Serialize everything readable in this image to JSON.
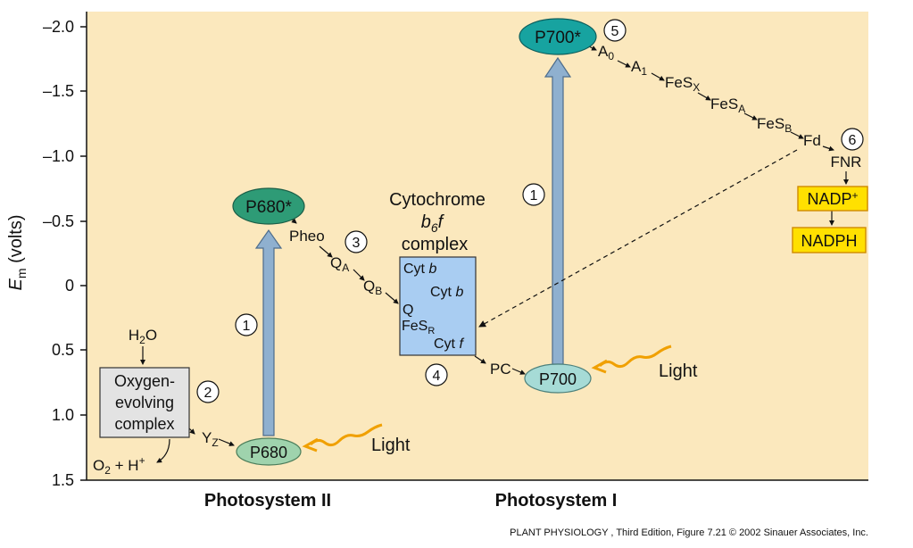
{
  "colors": {
    "plot_bg": "#fbe8bd",
    "p680_star": "#2e9b76",
    "p700_star": "#17a3a0",
    "p680": "#9fd3ad",
    "p700": "#a6dbd6",
    "cytochrome_box": "#a9cdf2",
    "oec_box": "#e3e3e3",
    "nadp_box": "#ffe000",
    "nadp_border": "#d08a00",
    "arrow_fill": "#8fb0cf",
    "light_wave": "#f0a000"
  },
  "axis": {
    "ylabel_main": "E",
    "ylabel_sub": "m",
    "ylabel_unit": " (volts)",
    "ticks": [
      "–2.0",
      "–1.5",
      "–1.0",
      "–0.5",
      "0",
      "0.5",
      "1.0",
      "1.5"
    ]
  },
  "sections": {
    "ps2": "Photosystem II",
    "ps1": "Photosystem I"
  },
  "caption": "PLANT PHYSIOLOGY , Third Edition, Figure 7.21  © 2002 Sinauer Associates, Inc.",
  "nodes": {
    "p680_star": "P680*",
    "p700_star": "P700*",
    "p680": "P680",
    "p700": "P700",
    "pheo": "Pheo",
    "qa": "Q",
    "qa_sub": "A",
    "qb": "Q",
    "qb_sub": "B",
    "a0": "A",
    "a0_sub": "0",
    "a1": "A",
    "a1_sub": "1",
    "fesx": "FeS",
    "fesx_sub": "X",
    "fesa": "FeS",
    "fesa_sub": "A",
    "fesb": "FeS",
    "fesb_sub": "B",
    "fd": "Fd",
    "fnr": "FNR",
    "nadp": "NADP",
    "nadp_sup": "+",
    "nadph": "NADPH",
    "pc": "PC",
    "yz": "Y",
    "yz_sub": "Z",
    "h2o": "H",
    "h2o_sub": "2",
    "h2o_end": "O",
    "o2": "O",
    "o2_sub": "2",
    "o2_mid": " + H",
    "o2_sup": "+",
    "light1": "Light",
    "light2": "Light"
  },
  "oec_lines": [
    "Oxygen-",
    "evolving",
    "complex"
  ],
  "cytochrome": {
    "title1": "Cytochrome",
    "title2_b": "b",
    "title2_sub": "6",
    "title2_f": "f",
    "title3": "complex",
    "cyt": "Cyt",
    "b": "b",
    "f": "f",
    "q": "Q",
    "fes": "FeS",
    "fes_sub": "R"
  },
  "steps": [
    "1",
    "2",
    "3",
    "4",
    "1",
    "5",
    "6"
  ]
}
